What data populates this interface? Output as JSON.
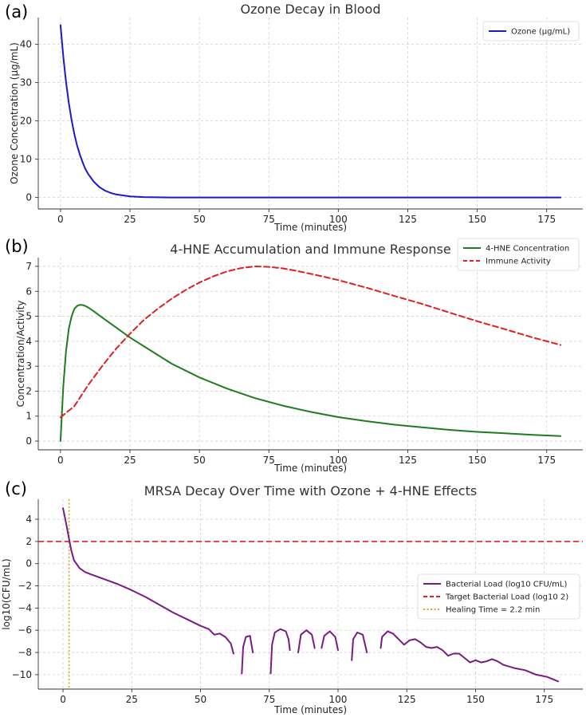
{
  "chart_data": [
    {
      "panel_label": "(a)",
      "type": "line",
      "title": "Ozone Decay in Blood",
      "xlabel": "Time (minutes)",
      "ylabel": "Ozone Concentration (µg/mL)",
      "xlim": [
        -8,
        188
      ],
      "ylim": [
        -3,
        47
      ],
      "xticks": [
        0,
        25,
        50,
        75,
        100,
        125,
        150,
        175
      ],
      "yticks": [
        0,
        10,
        20,
        30,
        40
      ],
      "legend_position": "top-right",
      "series": [
        {
          "name": "Ozone (µg/mL)",
          "color": "#1a1acd",
          "style": "solid",
          "x": [
            0,
            1,
            2,
            3,
            4,
            5,
            6,
            7,
            8,
            9,
            10,
            12,
            14,
            16,
            18,
            20,
            25,
            30,
            40,
            60,
            80,
            100,
            120,
            140,
            160,
            180
          ],
          "y": [
            45,
            36.8,
            30.2,
            24.7,
            20.2,
            16.5,
            13.5,
            11.1,
            9.1,
            7.4,
            6.1,
            4.1,
            2.7,
            1.8,
            1.2,
            0.8,
            0.3,
            0.1,
            0,
            0,
            0,
            0,
            0,
            0,
            0,
            0
          ]
        }
      ]
    },
    {
      "panel_label": "(b)",
      "type": "line",
      "title": "4-HNE Accumulation and Immune Response",
      "xlabel": "Time (minutes)",
      "ylabel": "Concentration/Activity",
      "xlim": [
        -8,
        188
      ],
      "ylim": [
        -0.35,
        7.35
      ],
      "xticks": [
        0,
        25,
        50,
        75,
        100,
        125,
        150,
        175
      ],
      "yticks": [
        0,
        1,
        2,
        3,
        4,
        5,
        6,
        7
      ],
      "legend_position": "top-right",
      "series": [
        {
          "name": "4-HNE Concentration",
          "color": "#1e7d1e",
          "style": "solid",
          "x": [
            0,
            1,
            2,
            3,
            4,
            5,
            6,
            7,
            8,
            9,
            10,
            12,
            15,
            20,
            25,
            30,
            40,
            50,
            60,
            70,
            80,
            90,
            100,
            110,
            120,
            130,
            140,
            150,
            160,
            170,
            180
          ],
          "y": [
            0,
            2.2,
            3.6,
            4.5,
            5.0,
            5.3,
            5.42,
            5.46,
            5.45,
            5.41,
            5.35,
            5.2,
            4.95,
            4.55,
            4.15,
            3.8,
            3.1,
            2.55,
            2.1,
            1.72,
            1.42,
            1.17,
            0.96,
            0.8,
            0.66,
            0.55,
            0.45,
            0.37,
            0.31,
            0.25,
            0.2
          ]
        },
        {
          "name": "Immune Activity",
          "color": "#e02020",
          "style": "dashed",
          "x": [
            0,
            5,
            10,
            15,
            20,
            25,
            30,
            35,
            40,
            45,
            50,
            55,
            60,
            65,
            70,
            75,
            80,
            85,
            90,
            95,
            100,
            110,
            120,
            130,
            140,
            150,
            160,
            170,
            180
          ],
          "y": [
            0.95,
            1.4,
            2.25,
            3.0,
            3.7,
            4.3,
            4.85,
            5.3,
            5.7,
            6.05,
            6.35,
            6.6,
            6.8,
            6.93,
            7.0,
            6.98,
            6.92,
            6.82,
            6.7,
            6.58,
            6.45,
            6.15,
            5.82,
            5.5,
            5.15,
            4.8,
            4.48,
            4.15,
            3.85
          ]
        }
      ]
    },
    {
      "panel_label": "(c)",
      "type": "line",
      "title": "MRSA Decay Over Time with Ozone + 4-HNE Effects",
      "xlabel": "Time (minutes)",
      "ylabel": "log10(CFU/mL)",
      "xlim": [
        -9,
        189
      ],
      "ylim": [
        -11.3,
        5.8
      ],
      "xticks": [
        0,
        25,
        50,
        75,
        100,
        125,
        150,
        175
      ],
      "yticks": [
        4,
        2,
        0,
        -2,
        -4,
        -6,
        -8,
        -10
      ],
      "legend_position": "center-right",
      "series": [
        {
          "name": "Bacterial Load (log10 CFU/mL)",
          "color": "#7a1a87",
          "style": "solid",
          "segments": [
            {
              "x": [
                0,
                1,
                2,
                3,
                4,
                6,
                8,
                10,
                15,
                20,
                25,
                30,
                35,
                40,
                45,
                50,
                53,
                55,
                57,
                59,
                61,
                62
              ],
              "y": [
                5,
                3.8,
                2.5,
                1.2,
                0.3,
                -0.4,
                -0.75,
                -0.95,
                -1.4,
                -1.85,
                -2.4,
                -3.0,
                -3.7,
                -4.4,
                -5.0,
                -5.6,
                -5.9,
                -6.4,
                -6.3,
                -6.6,
                -7.2,
                -8.1
              ]
            },
            {
              "x": [
                65,
                65.5,
                66.5,
                68,
                69
              ],
              "y": [
                -9.9,
                -7.5,
                -6.6,
                -6.5,
                -8.0
              ]
            },
            {
              "x": [
                75.5,
                76,
                77,
                79,
                81,
                82,
                82.5
              ],
              "y": [
                -9.9,
                -7.3,
                -6.2,
                -5.9,
                -6.1,
                -6.8,
                -7.8
              ]
            },
            {
              "x": [
                85.5,
                86.5,
                88.5,
                90.5,
                91.5
              ],
              "y": [
                -8.0,
                -6.4,
                -6.0,
                -6.4,
                -7.6
              ]
            },
            {
              "x": [
                94,
                95,
                97,
                99,
                100
              ],
              "y": [
                -7.6,
                -6.5,
                -6.1,
                -6.6,
                -7.8
              ]
            },
            {
              "x": [
                105,
                105.5,
                107,
                109,
                110.5
              ],
              "y": [
                -8.7,
                -6.8,
                -6.2,
                -6.4,
                -8.0
              ]
            },
            {
              "x": [
                115.5,
                116,
                118,
                120,
                122,
                124,
                126,
                128,
                130,
                132,
                134,
                136,
                138,
                140,
                142,
                144,
                146,
                148,
                150,
                152,
                154,
                156,
                158,
                160,
                164,
                168,
                172,
                176,
                180
              ],
              "y": [
                -7.6,
                -6.6,
                -6.1,
                -6.3,
                -6.8,
                -7.3,
                -6.9,
                -6.8,
                -7.1,
                -7.5,
                -7.6,
                -7.5,
                -7.8,
                -8.3,
                -8.1,
                -8.1,
                -8.5,
                -8.9,
                -8.7,
                -8.9,
                -8.8,
                -8.6,
                -8.8,
                -9.1,
                -9.4,
                -9.6,
                -10.0,
                -10.2,
                -10.6
              ]
            }
          ]
        }
      ],
      "reference_lines": [
        {
          "name": "Target Bacterial Load (log10 2)",
          "orientation": "horizontal",
          "value": 2,
          "color": "#e02020",
          "style": "dashed"
        },
        {
          "name": "Healing Time = 2.2 min",
          "orientation": "vertical",
          "value": 2.2,
          "color": "#e0a020",
          "style": "dotted"
        }
      ]
    }
  ]
}
